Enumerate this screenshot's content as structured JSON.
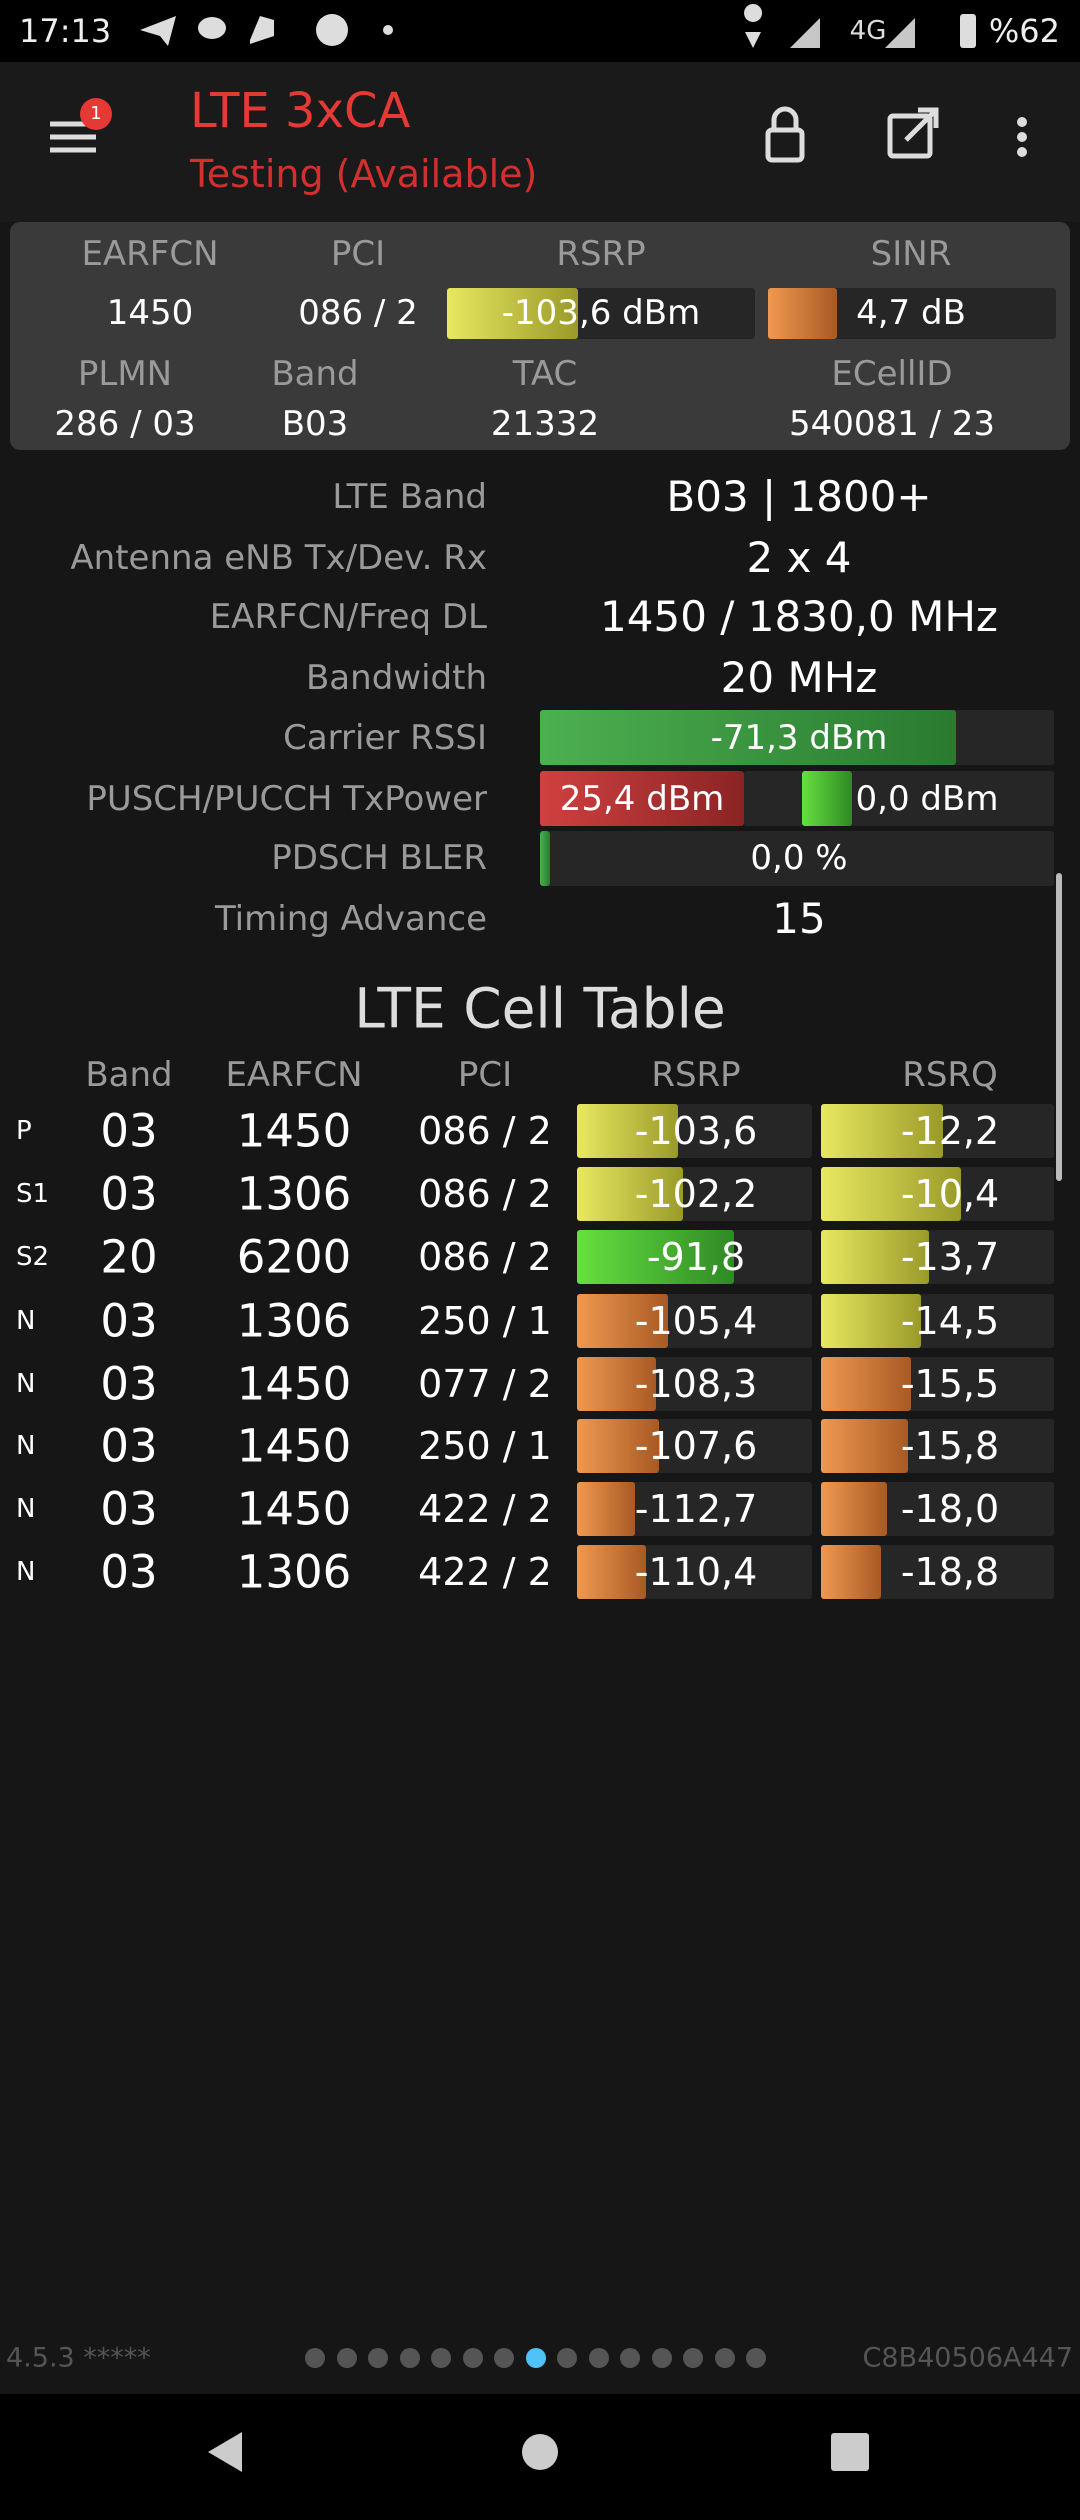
{
  "status_bar": {
    "time": "17:13",
    "network": "4G",
    "battery": "%62"
  },
  "header": {
    "notification_count": "1",
    "title": "LTE 3xCA",
    "subtitle": "Testing (Available)"
  },
  "summary": {
    "row1": {
      "labels": [
        "EARFCN",
        "PCI",
        "RSRP",
        "SINR"
      ],
      "values": [
        "1450",
        "086 / 2",
        "-103,6 dBm",
        "4,7 dB"
      ]
    },
    "row2": {
      "labels": [
        "PLMN",
        "Band",
        "TAC",
        "ECellID"
      ],
      "values": [
        "286 / 03",
        "B03",
        "21332",
        "540081 / 23"
      ]
    }
  },
  "details": [
    {
      "label": "LTE Band",
      "values": [
        "B03 | 1800+"
      ]
    },
    {
      "label": "Antenna eNB Tx/Dev. Rx",
      "values": [
        "2 x 4"
      ]
    },
    {
      "label": "EARFCN/Freq DL",
      "values": [
        "1450 / 1830,0 MHz"
      ]
    },
    {
      "label": "Bandwidth",
      "values": [
        "20 MHz"
      ]
    },
    {
      "label": "Carrier RSSI",
      "values": [
        "-71,3 dBm"
      ]
    },
    {
      "label": "PUSCH/PUCCH TxPower",
      "values": [
        "25,4 dBm",
        "0,0 dBm"
      ]
    },
    {
      "label": "PDSCH BLER",
      "values": [
        "0,0 %"
      ]
    },
    {
      "label": "Timing Advance",
      "values": [
        "15"
      ]
    }
  ],
  "cell_table": {
    "title": "LTE Cell Table",
    "columns": [
      "Band",
      "EARFCN",
      "PCI",
      "RSRP",
      "RSRQ"
    ],
    "rows": [
      [
        "P",
        "03",
        "1450",
        "086 / 2",
        "-103,6",
        "-12,2"
      ],
      [
        "S1",
        "03",
        "1306",
        "086 / 2",
        "-102,2",
        "-10,4"
      ],
      [
        "S2",
        "20",
        "6200",
        "086 / 2",
        "-91,8",
        "-13,7"
      ],
      [
        "N",
        "03",
        "1306",
        "250 / 1",
        "-105,4",
        "-14,5"
      ],
      [
        "N",
        "03",
        "1450",
        "077 / 2",
        "-108,3",
        "-15,5"
      ],
      [
        "N",
        "03",
        "1450",
        "250 / 1",
        "-107,6",
        "-15,8"
      ],
      [
        "N",
        "03",
        "1450",
        "422 / 2",
        "-112,7",
        "-18,0"
      ],
      [
        "N",
        "03",
        "1306",
        "422 / 2",
        "-110,4",
        "-18,8"
      ]
    ]
  },
  "footer": {
    "version": "4.5.3 *****",
    "device_id": "C8B40506A447"
  }
}
